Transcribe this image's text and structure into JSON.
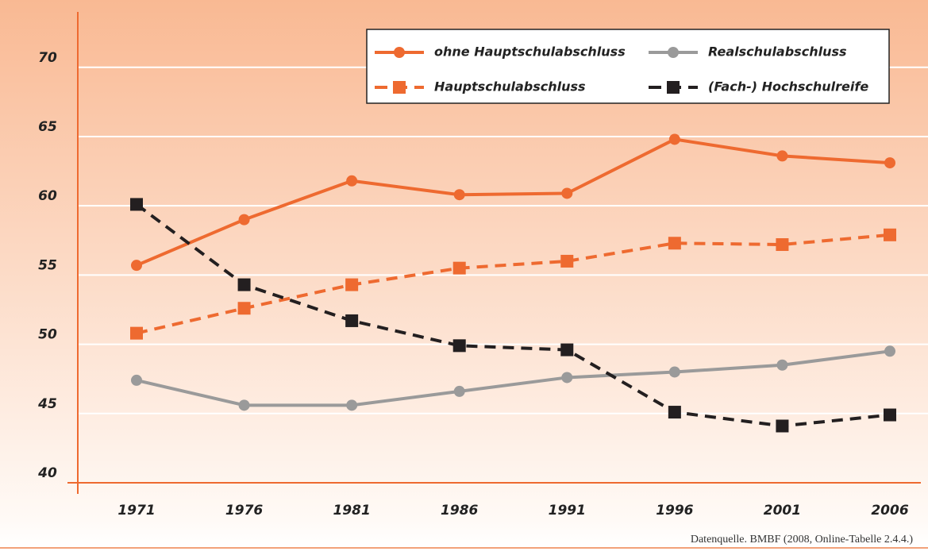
{
  "chart_data": {
    "type": "line",
    "categories": [
      "1971",
      "1976",
      "1981",
      "1986",
      "1991",
      "1996",
      "2001",
      "2006"
    ],
    "series": [
      {
        "name": "ohne Hauptschulabschluss",
        "color": "#ee6a30",
        "dashed": false,
        "marker": "circle",
        "values": [
          55.7,
          59.0,
          61.8,
          60.8,
          60.9,
          64.8,
          63.6,
          63.1
        ]
      },
      {
        "name": "Hauptschulabschluss",
        "color": "#ee6a30",
        "dashed": true,
        "marker": "square",
        "values": [
          50.8,
          52.6,
          54.3,
          55.5,
          56.0,
          57.3,
          57.2,
          57.9
        ]
      },
      {
        "name": "Realschulabschluss",
        "color": "#9a9a9a",
        "dashed": false,
        "marker": "circle",
        "values": [
          47.4,
          45.6,
          45.6,
          46.6,
          47.6,
          48.0,
          48.5,
          49.5
        ]
      },
      {
        "name": "(Fach-) Hochschulreife",
        "color": "#231f20",
        "dashed": true,
        "marker": "square",
        "values": [
          60.1,
          54.3,
          51.7,
          49.9,
          49.6,
          45.1,
          44.1,
          44.9
        ]
      }
    ],
    "ylim": [
      40,
      74
    ],
    "yticks": [
      40,
      45,
      50,
      55,
      60,
      65,
      70
    ],
    "grid": true,
    "source": "Datenquelle. BMBF (2008, Online-Tabelle 2.4.4.)"
  }
}
